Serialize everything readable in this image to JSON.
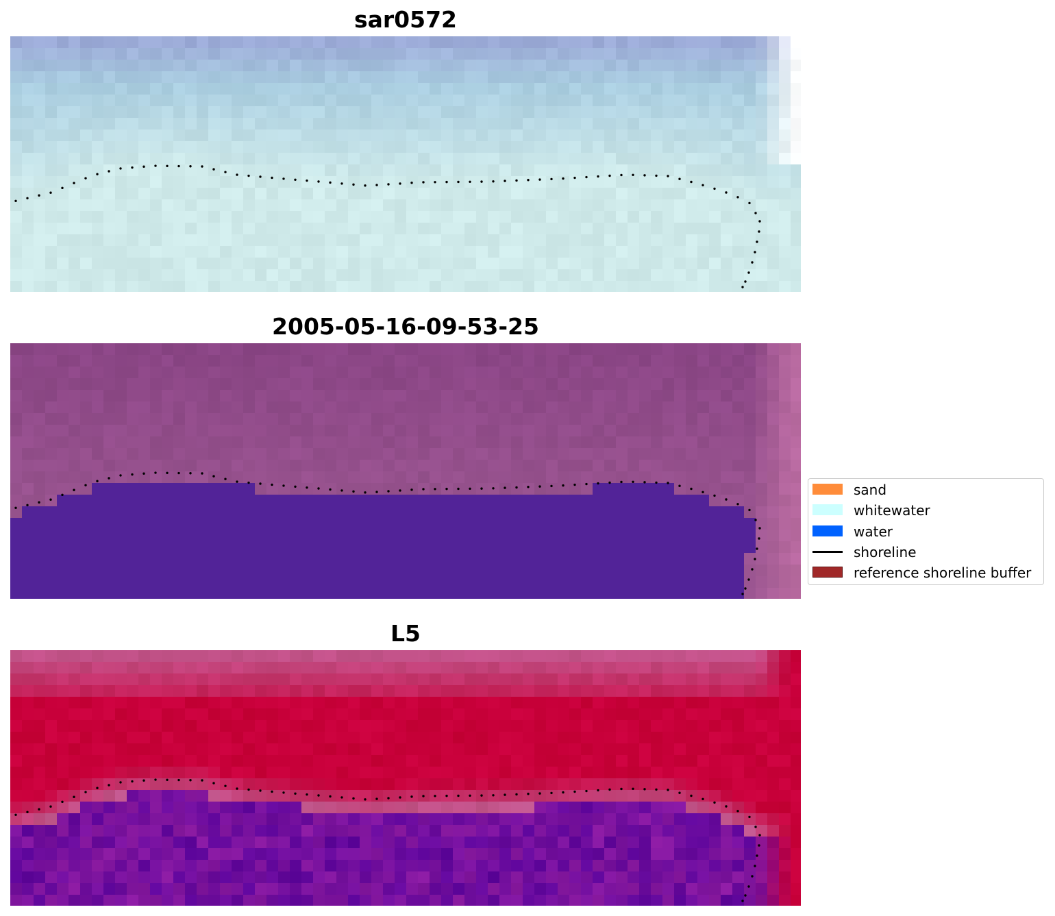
{
  "chart_data": [
    {
      "type": "heatmap",
      "title": "sar0572",
      "colormap": [
        "#ffffff",
        "#cfeaea",
        "#a9cde0",
        "#9aa6d6"
      ],
      "overlay": "reference shoreline (dotted)"
    },
    {
      "type": "heatmap",
      "title": "2005-05-16-09-53-25",
      "colormap": [
        "#b86aa0",
        "#9a5590",
        "#8a4585",
        "#522398"
      ],
      "overlay": "reference shoreline (dotted)"
    },
    {
      "type": "heatmap",
      "title": "L5",
      "colormap": [
        "#c8003a",
        "#c25a90",
        "#8a1aa0",
        "#52009a"
      ],
      "overlay": "reference shoreline (dotted)"
    }
  ],
  "legend": {
    "placement": "center-right",
    "items": [
      {
        "label": "sand",
        "color": "#ff8c3a",
        "kind": "patch"
      },
      {
        "label": "whitewater",
        "color": "#ccffff",
        "kind": "patch"
      },
      {
        "label": "water",
        "color": "#0062ff",
        "kind": "patch"
      },
      {
        "label": "shoreline",
        "color": "#000000",
        "kind": "line"
      },
      {
        "label": "reference shoreline buffer",
        "color": "#a02828",
        "kind": "patch"
      }
    ]
  }
}
